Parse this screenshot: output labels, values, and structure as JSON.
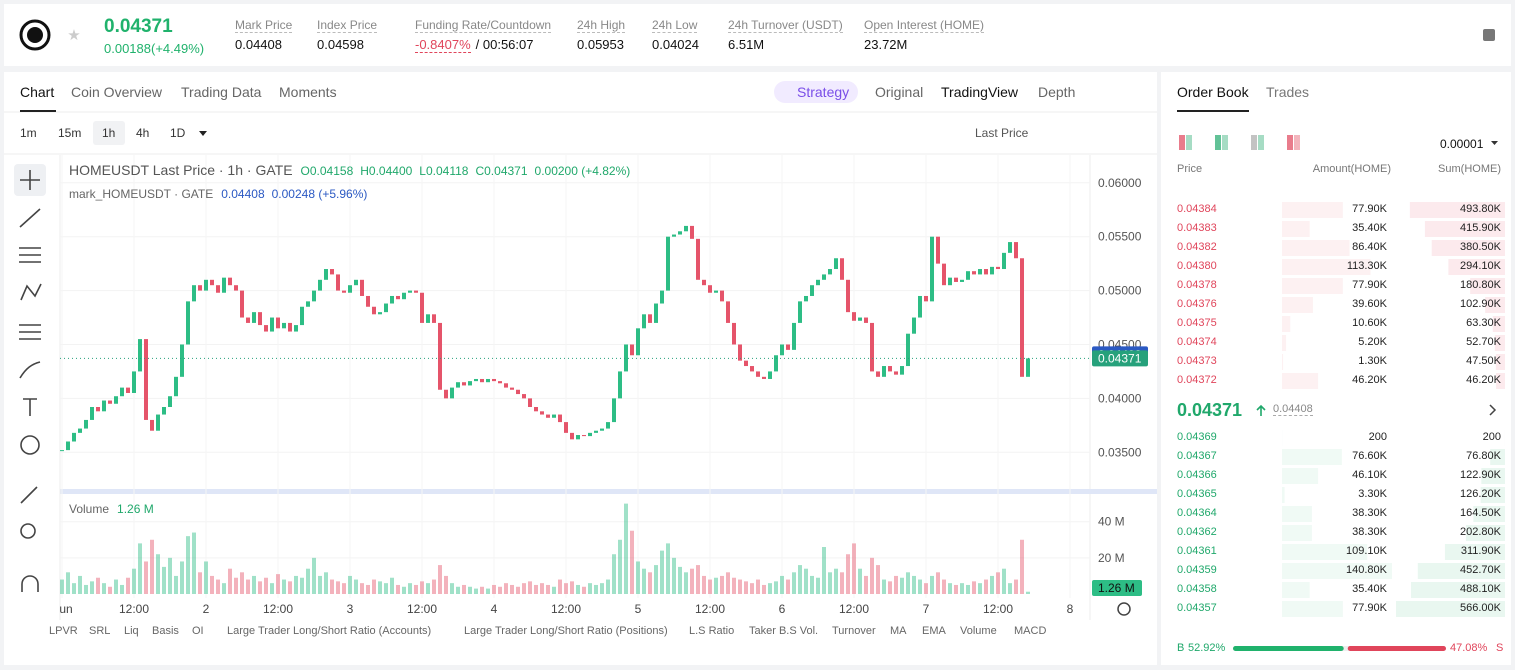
{
  "header": {
    "price": "0.04371",
    "change": "0.00188(+4.49%)",
    "stats": [
      {
        "label": "Mark Price",
        "value": "0.04408"
      },
      {
        "label": "Index Price",
        "value": "0.04598"
      },
      {
        "label": "Funding Rate/Countdown",
        "value": "-0.8407%",
        "extra": "/ 00:56:07"
      },
      {
        "label": "24h High",
        "value": "0.05953"
      },
      {
        "label": "24h Low",
        "value": "0.04024"
      },
      {
        "label": "24h Turnover (USDT)",
        "value": "6.51M"
      },
      {
        "label": "Open Interest (HOME)",
        "value": "23.72M"
      }
    ]
  },
  "tabs": [
    "Chart",
    "Coin Overview",
    "Trading Data",
    "Moments"
  ],
  "views": [
    "Strategy",
    "Original",
    "TradingView",
    "Depth"
  ],
  "intervals": [
    "1m",
    "15m",
    "1h",
    "4h",
    "1D"
  ],
  "price_type": "Last Price",
  "legend": {
    "title": "HOMEUSDT Last Price · 1h · GATE",
    "ohlc": [
      "O0.04158",
      "H0.04400",
      "L0.04118",
      "C0.04371",
      "0.00200 (+4.82%)"
    ],
    "mark": "mark_HOMEUSDT · GATE",
    "mark_values": [
      "0.04408",
      "0.00248 (+5.96%)"
    ],
    "volume": "Volume"
  },
  "chart_data": {
    "type": "candlestick",
    "up_color": "#2dbd85",
    "down_color": "#e5546a",
    "xlim": [
      0,
      171
    ],
    "xticks": [
      {
        "value": 0,
        "label": "un"
      },
      {
        "value": 12,
        "label": "12:00"
      },
      {
        "value": 24,
        "label": "2"
      },
      {
        "value": 36,
        "label": "12:00"
      },
      {
        "value": 48,
        "label": "3"
      },
      {
        "value": 60,
        "label": "12:00"
      },
      {
        "value": 72,
        "label": "4"
      },
      {
        "value": 84,
        "label": "12:00"
      },
      {
        "value": 96,
        "label": "5"
      },
      {
        "value": 108,
        "label": "12:00"
      },
      {
        "value": 120,
        "label": "6"
      },
      {
        "value": 132,
        "label": "12:00"
      },
      {
        "value": 144,
        "label": "7"
      },
      {
        "value": 156,
        "label": "12:00"
      },
      {
        "value": 168,
        "label": "8"
      }
    ],
    "price": {
      "ylim": [
        0.0315,
        0.0623
      ],
      "yticks": [
        {
          "value": 0.06,
          "label": "0.06000"
        },
        {
          "value": 0.055,
          "label": "0.05500"
        },
        {
          "value": 0.05,
          "label": "0.05000"
        },
        {
          "value": 0.045,
          "label": "0.04500"
        },
        {
          "value": 0.04,
          "label": "0.04000"
        },
        {
          "value": 0.035,
          "label": "0.03500"
        }
      ],
      "close": [
        0.0352,
        0.036,
        0.0368,
        0.0372,
        0.038,
        0.0392,
        0.0388,
        0.0398,
        0.0395,
        0.0402,
        0.041,
        0.0405,
        0.0425,
        0.0455,
        0.038,
        0.037,
        0.0385,
        0.0392,
        0.0402,
        0.042,
        0.045,
        0.049,
        0.0505,
        0.05,
        0.051,
        0.0505,
        0.0498,
        0.0512,
        0.0505,
        0.05,
        0.0475,
        0.047,
        0.048,
        0.0468,
        0.0462,
        0.0475,
        0.0465,
        0.047,
        0.0462,
        0.0468,
        0.0485,
        0.049,
        0.05,
        0.051,
        0.052,
        0.0515,
        0.05,
        0.0498,
        0.0505,
        0.051,
        0.0495,
        0.0485,
        0.0478,
        0.048,
        0.0488,
        0.0495,
        0.0492,
        0.0498,
        0.05,
        0.0498,
        0.047,
        0.0478,
        0.047,
        0.0408,
        0.04,
        0.041,
        0.0415,
        0.0412,
        0.0416,
        0.0418,
        0.0415,
        0.0418,
        0.0416,
        0.0414,
        0.041,
        0.0408,
        0.0404,
        0.04,
        0.0392,
        0.0388,
        0.0385,
        0.0382,
        0.0385,
        0.0378,
        0.0368,
        0.0362,
        0.0366,
        0.0365,
        0.0368,
        0.037,
        0.0372,
        0.0378,
        0.04,
        0.0425,
        0.045,
        0.044,
        0.0465,
        0.0478,
        0.047,
        0.0488,
        0.05,
        0.055,
        0.0552,
        0.0555,
        0.056,
        0.0548,
        0.051,
        0.0505,
        0.0498,
        0.05,
        0.049,
        0.047,
        0.045,
        0.0435,
        0.043,
        0.0425,
        0.042,
        0.0418,
        0.0425,
        0.044,
        0.045,
        0.0445,
        0.047,
        0.049,
        0.0495,
        0.0505,
        0.051,
        0.0515,
        0.052,
        0.053,
        0.051,
        0.048,
        0.0472,
        0.0475,
        0.047,
        0.0425,
        0.042,
        0.043,
        0.0425,
        0.0422,
        0.043,
        0.046,
        0.0475,
        0.0495,
        0.049,
        0.055,
        0.0525,
        0.0505,
        0.0512,
        0.0508,
        0.051,
        0.0518,
        0.0515,
        0.052,
        0.0515,
        0.0522,
        0.052,
        0.0535,
        0.0545,
        0.053,
        0.042,
        0.04371
      ]
    },
    "tags": [
      {
        "value": 0.04408,
        "label": "0.04408",
        "color": "#2b59c3"
      },
      {
        "value": 0.04371,
        "label": "0.04371",
        "color": "#26a17b"
      }
    ],
    "volume": {
      "ylim": [
        0,
        52
      ],
      "yticks": [
        {
          "value": 20,
          "label": "20 M"
        },
        {
          "value": 40,
          "label": "40 M"
        }
      ],
      "values": [
        8,
        12,
        6,
        10,
        5,
        7,
        9,
        6,
        4,
        8,
        5,
        9,
        14,
        28,
        18,
        30,
        22,
        15,
        20,
        10,
        18,
        32,
        34,
        12,
        18,
        10,
        8,
        6,
        14,
        9,
        12,
        8,
        10,
        7,
        9,
        6,
        11,
        8,
        7,
        10,
        9,
        14,
        20,
        10,
        12,
        8,
        7,
        6,
        10,
        8,
        6,
        5,
        8,
        7,
        6,
        9,
        5,
        4,
        6,
        5,
        7,
        6,
        8,
        16,
        10,
        6,
        4,
        5,
        4,
        3,
        4,
        3,
        5,
        4,
        6,
        5,
        4,
        6,
        7,
        5,
        6,
        5,
        4,
        8,
        6,
        7,
        5,
        4,
        6,
        5,
        6,
        8,
        22,
        30,
        50,
        35,
        18,
        14,
        12,
        16,
        24,
        28,
        20,
        15,
        12,
        14,
        16,
        10,
        8,
        9,
        10,
        12,
        9,
        8,
        7,
        6,
        8,
        5,
        6,
        7,
        10,
        8,
        12,
        16,
        14,
        10,
        9,
        26,
        12,
        14,
        12,
        22,
        28,
        14,
        10,
        20,
        16,
        8,
        7,
        10,
        9,
        12,
        10,
        8,
        6,
        10,
        12,
        8,
        6,
        5,
        6,
        5,
        7,
        6,
        8,
        10,
        12,
        14,
        6,
        8,
        30,
        1.26
      ],
      "tag": {
        "value": 1.26,
        "label": "1.26 M"
      }
    }
  },
  "indicators": [
    "LPVR",
    "SRL",
    "Liq",
    "Basis",
    "OI",
    "Large Trader Long/Short Ratio (Accounts)",
    "Large Trader Long/Short Ratio (Positions)",
    "L.S Ratio",
    "Taker B.S Vol.",
    "Turnover",
    "MA",
    "EMA",
    "Volume",
    "MACD"
  ],
  "order_book": {
    "tabs": [
      "Order Book",
      "Trades"
    ],
    "precision": "0.00001",
    "headers": [
      "Price",
      "Amount(HOME)",
      "Sum(HOME)"
    ],
    "asks": [
      [
        "0.04384",
        "77.90K",
        "493.80K"
      ],
      [
        "0.04383",
        "35.40K",
        "415.90K"
      ],
      [
        "0.04382",
        "86.40K",
        "380.50K"
      ],
      [
        "0.04380",
        "113.30K",
        "294.10K"
      ],
      [
        "0.04378",
        "77.90K",
        "180.80K"
      ],
      [
        "0.04376",
        "39.60K",
        "102.90K"
      ],
      [
        "0.04375",
        "10.60K",
        "63.30K"
      ],
      [
        "0.04374",
        "5.20K",
        "52.70K"
      ],
      [
        "0.04373",
        "1.30K",
        "47.50K"
      ],
      [
        "0.04372",
        "46.20K",
        "46.20K"
      ]
    ],
    "last": "0.04371",
    "mark": "0.04408",
    "bids": [
      [
        "0.04369",
        "200",
        "200"
      ],
      [
        "0.04367",
        "76.60K",
        "76.80K"
      ],
      [
        "0.04366",
        "46.10K",
        "122.90K"
      ],
      [
        "0.04365",
        "3.30K",
        "126.20K"
      ],
      [
        "0.04364",
        "38.30K",
        "164.50K"
      ],
      [
        "0.04362",
        "38.30K",
        "202.80K"
      ],
      [
        "0.04361",
        "109.10K",
        "311.90K"
      ],
      [
        "0.04359",
        "140.80K",
        "452.70K"
      ],
      [
        "0.04358",
        "35.40K",
        "488.10K"
      ],
      [
        "0.04357",
        "77.90K",
        "566.00K"
      ]
    ],
    "buy": {
      "letter": "B",
      "value": 52.92,
      "label": "52.92%"
    },
    "sell": {
      "letter": "S",
      "value": 47.08,
      "label": "47.08%"
    }
  }
}
